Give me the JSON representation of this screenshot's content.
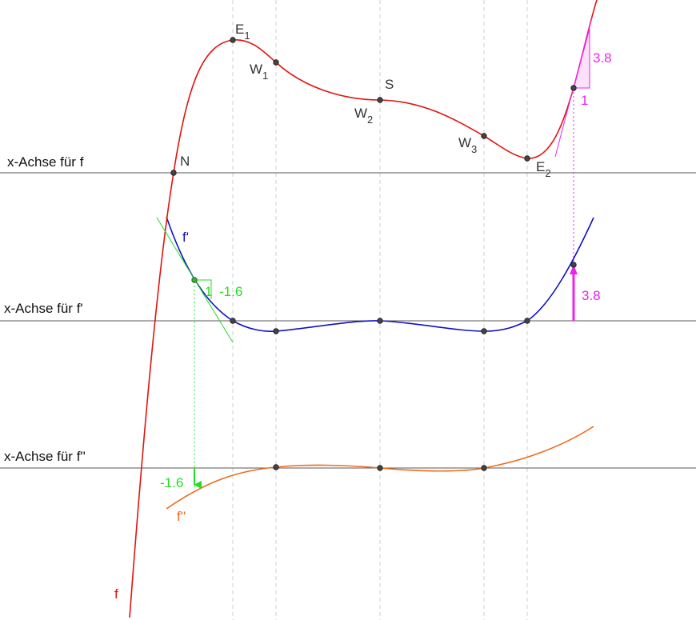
{
  "axes": {
    "f": "x-Achse für f",
    "f1": "x-Achse für f'",
    "f2": "x-Achse für f''"
  },
  "curves": {
    "f": "f",
    "f1": "f'",
    "f2": "f''"
  },
  "points": {
    "N": "N",
    "E1": "E",
    "E1_sub": "1",
    "W1": "W",
    "W1_sub": "1",
    "S": "S",
    "W2": "W",
    "W2_sub": "2",
    "W3": "W",
    "W3_sub": "3",
    "E2": "E",
    "E2_sub": "2"
  },
  "slope_green": {
    "run_label": "1",
    "value": "-1.6",
    "value_lower": "-1.6"
  },
  "slope_magenta": {
    "value": "3.8",
    "run_label": "1",
    "value_derivative": "3.8"
  },
  "colors": {
    "f": "#e0140f",
    "f1": "#1010c8",
    "f2": "#ee6a1a",
    "axis": "#5a5a5a",
    "guide": "#cccccc",
    "green": "#22dd22",
    "magenta": "#ee22ee"
  }
}
